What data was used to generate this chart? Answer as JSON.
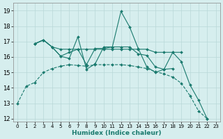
{
  "xlabel": "Humidex (Indice chaleur)",
  "background_color": "#d6eeee",
  "grid_color": "#b8d8d8",
  "line_color": "#1a7a6e",
  "xlim": [
    -0.5,
    23.5
  ],
  "ylim": [
    11.8,
    19.5
  ],
  "yticks": [
    12,
    13,
    14,
    15,
    16,
    17,
    18,
    19
  ],
  "xticks": [
    0,
    1,
    2,
    3,
    4,
    5,
    6,
    7,
    8,
    9,
    10,
    11,
    12,
    13,
    14,
    15,
    16,
    17,
    18,
    19,
    20,
    21,
    22,
    23
  ],
  "lines": [
    {
      "x": [
        0,
        1,
        2,
        3,
        4,
        5,
        6,
        7,
        8,
        9,
        10,
        11,
        12,
        13,
        14,
        15,
        16,
        17,
        18,
        19,
        20,
        21,
        22
      ],
      "y": [
        13.0,
        14.1,
        14.35,
        15.0,
        15.25,
        15.4,
        15.5,
        15.45,
        15.4,
        15.5,
        15.5,
        15.5,
        15.5,
        15.45,
        15.35,
        15.25,
        15.05,
        14.9,
        14.7,
        14.3,
        13.5,
        12.5,
        12.0
      ],
      "linestyle": "--",
      "marker": "D",
      "markersize": 2.0
    },
    {
      "x": [
        2,
        3,
        4,
        5,
        6,
        7,
        8,
        9,
        10,
        11,
        12,
        13,
        14,
        15,
        16,
        17,
        18
      ],
      "y": [
        16.85,
        17.1,
        16.65,
        16.05,
        15.9,
        17.3,
        15.2,
        15.55,
        16.65,
        16.65,
        18.95,
        17.95,
        16.55,
        15.35,
        15.0,
        15.2,
        15.25
      ],
      "linestyle": "-",
      "marker": "D",
      "markersize": 2.0
    },
    {
      "x": [
        2,
        3,
        4,
        5,
        6,
        7,
        8,
        9,
        10,
        11,
        12,
        13,
        14,
        15,
        16,
        17,
        18,
        19
      ],
      "y": [
        16.85,
        17.1,
        16.65,
        16.5,
        16.5,
        16.5,
        16.5,
        16.5,
        16.5,
        16.5,
        16.5,
        16.5,
        16.5,
        16.5,
        16.3,
        16.3,
        16.3,
        16.3
      ],
      "linestyle": "-",
      "marker": "D",
      "markersize": 2.0
    },
    {
      "x": [
        2,
        3,
        4,
        5,
        6,
        7,
        8,
        9,
        10,
        11,
        12,
        13,
        14,
        15,
        16,
        17,
        18,
        19,
        20,
        21,
        22
      ],
      "y": [
        16.85,
        17.1,
        16.65,
        16.05,
        16.3,
        16.5,
        15.5,
        16.55,
        16.55,
        16.65,
        16.65,
        16.65,
        16.2,
        16.1,
        15.35,
        15.2,
        16.3,
        15.7,
        14.2,
        13.2,
        12.0
      ],
      "linestyle": "-",
      "marker": "D",
      "markersize": 2.0
    }
  ]
}
